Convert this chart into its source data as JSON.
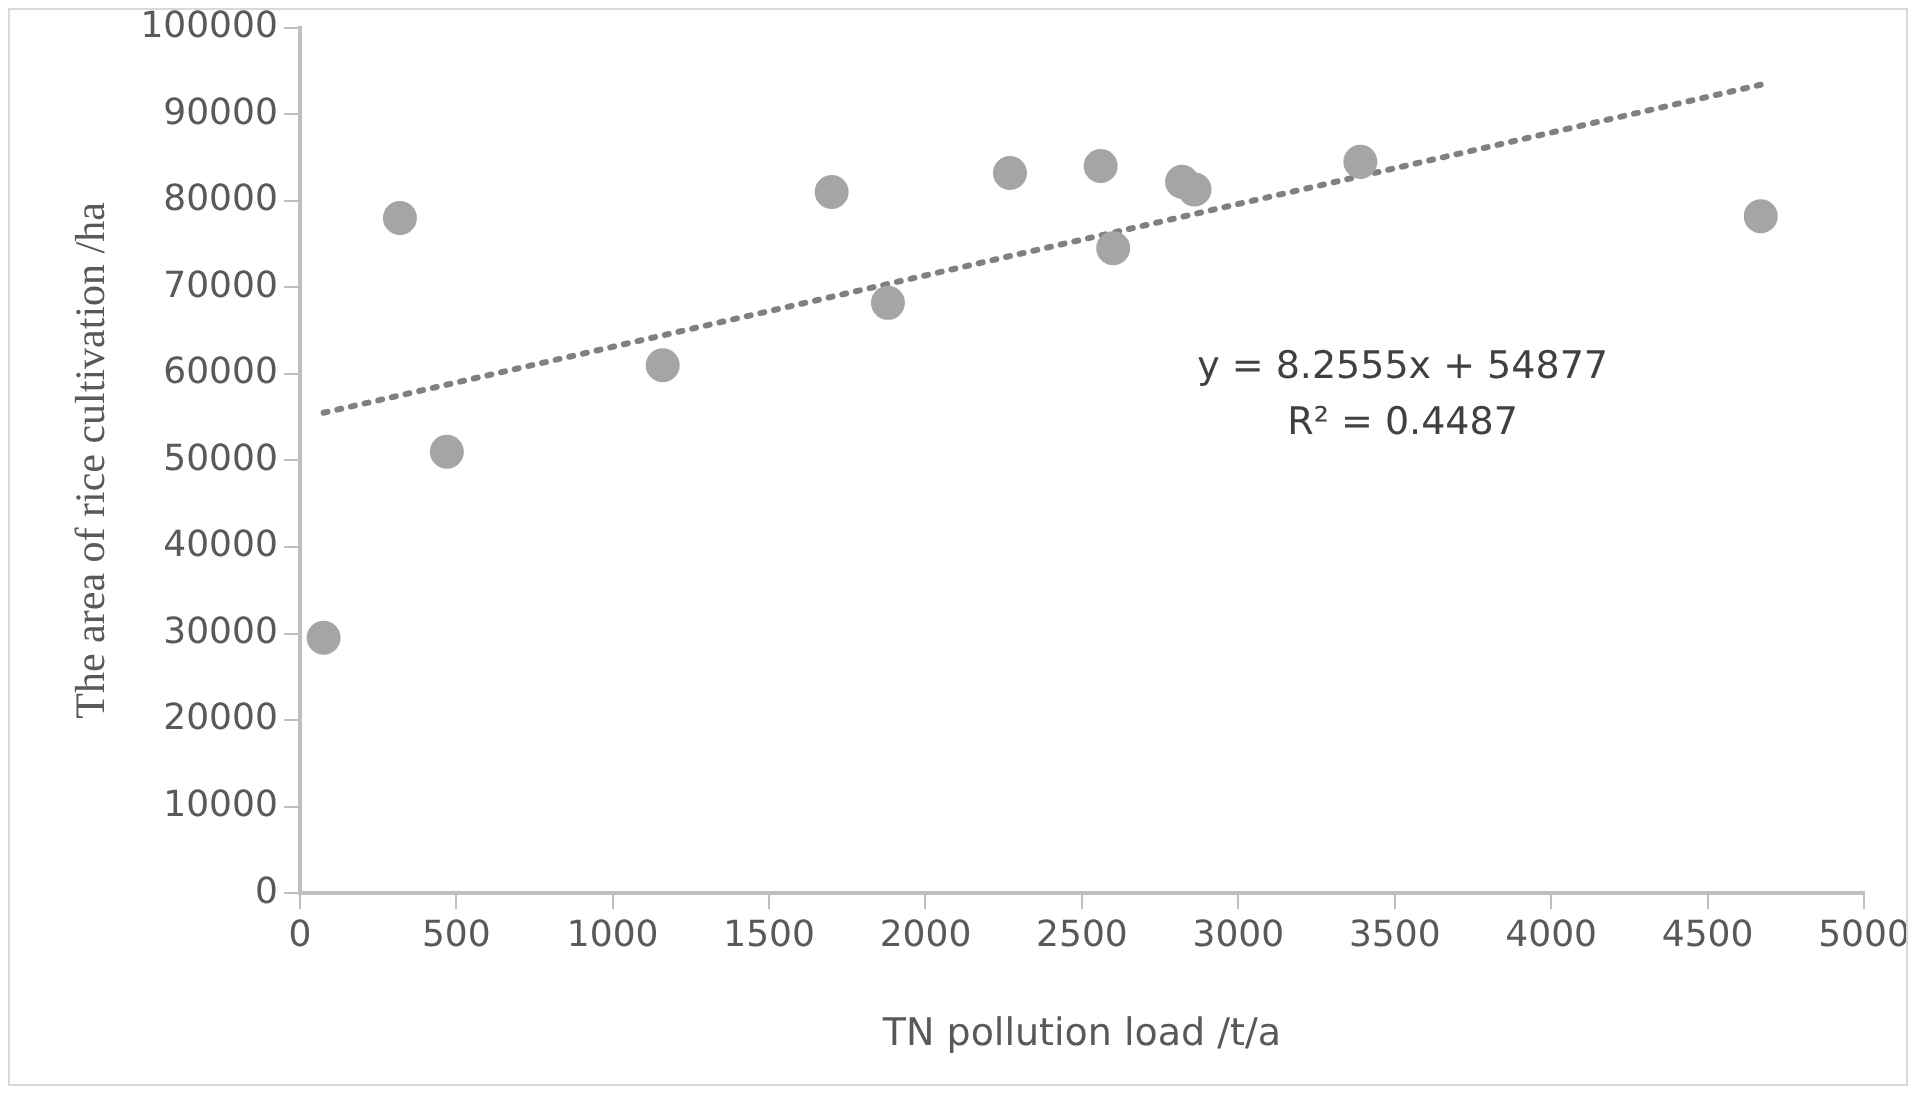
{
  "chart_data": {
    "type": "scatter",
    "xlabel": "TN pollution load /t/a",
    "ylabel": "The area of rice cultivation /ha",
    "xlim": [
      0,
      5000
    ],
    "xticks": [
      0,
      500,
      1000,
      1500,
      2000,
      2500,
      3000,
      3500,
      4000,
      4500,
      5000
    ],
    "ylim": [
      0,
      100000
    ],
    "yticks": [
      0,
      10000,
      20000,
      30000,
      40000,
      50000,
      60000,
      70000,
      80000,
      90000,
      100000
    ],
    "grid": false,
    "legend": false,
    "marker": "circle",
    "series": [
      {
        "type": "scatter",
        "color": "#a5a5a5",
        "x": [
          76,
          320,
          470,
          1160,
          1700,
          1880,
          2270,
          2560,
          2600,
          2820,
          2860,
          3390,
          4670
        ],
        "values": [
          29500,
          78000,
          51000,
          61000,
          81000,
          68200,
          83200,
          84000,
          74500,
          82200,
          81300,
          84500,
          78200
        ]
      },
      {
        "type": "line",
        "color": "#808080",
        "line_style": "dotted",
        "marker": "none",
        "x": [
          76,
          4670
        ],
        "values": [
          55500,
          93400
        ]
      }
    ],
    "annotations": [
      "y = 8.2555x + 54877",
      "R² = 0.4487"
    ]
  }
}
